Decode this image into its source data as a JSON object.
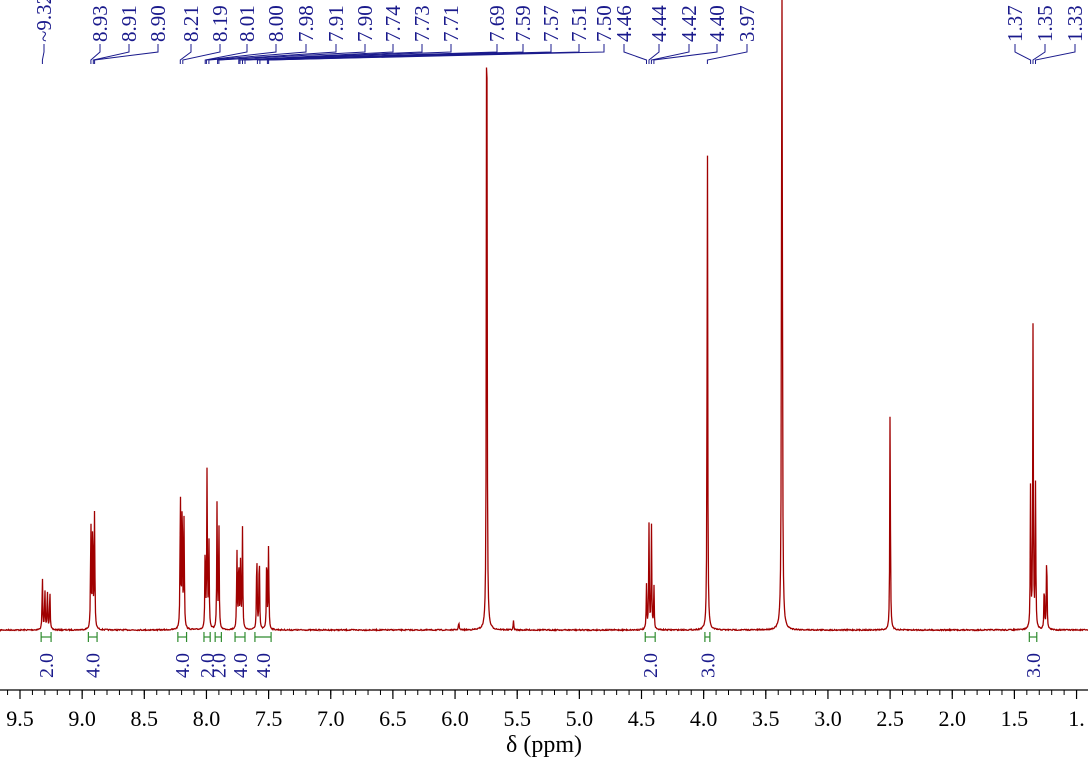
{
  "chart_data": {
    "type": "line",
    "title": "",
    "xlabel": "δ (ppm)",
    "ylabel": "",
    "x_reversed": true,
    "xlim": [
      9.6,
      1.0
    ],
    "ylim": [
      0,
      1.0
    ],
    "grid": false,
    "colors": {
      "spectrum": "#a00000",
      "peak_labels": "#1a1a8c",
      "integrals": "#2e8b2e",
      "axis": "#000000"
    },
    "x_ticks": [
      {
        "value": 9.5,
        "label": "9.5"
      },
      {
        "value": 9.0,
        "label": "9.0"
      },
      {
        "value": 8.5,
        "label": "8.5"
      },
      {
        "value": 8.0,
        "label": "8.0"
      },
      {
        "value": 7.5,
        "label": "7.5"
      },
      {
        "value": 7.0,
        "label": "7.0"
      },
      {
        "value": 6.5,
        "label": "6.5"
      },
      {
        "value": 6.0,
        "label": "6.0"
      },
      {
        "value": 5.5,
        "label": "5.5"
      },
      {
        "value": 5.0,
        "label": "5.0"
      },
      {
        "value": 4.5,
        "label": "4.5"
      },
      {
        "value": 4.0,
        "label": "4.0"
      },
      {
        "value": 3.5,
        "label": "3.5"
      },
      {
        "value": 3.0,
        "label": "3.0"
      },
      {
        "value": 2.5,
        "label": "2.5"
      },
      {
        "value": 2.0,
        "label": "2.0"
      },
      {
        "value": 1.5,
        "label": "1.5"
      },
      {
        "value": 1.0,
        "label": "1."
      }
    ],
    "peaks": [
      {
        "ppm": 9.32,
        "h": 0.09
      },
      {
        "ppm": 9.3,
        "h": 0.07
      },
      {
        "ppm": 9.28,
        "h": 0.07
      },
      {
        "ppm": 9.26,
        "h": 0.07
      },
      {
        "ppm": 8.93,
        "h": 0.19
      },
      {
        "ppm": 8.915,
        "h": 0.2
      },
      {
        "ppm": 8.9,
        "h": 0.19
      },
      {
        "ppm": 8.21,
        "h": 0.24
      },
      {
        "ppm": 8.195,
        "h": 0.24
      },
      {
        "ppm": 8.18,
        "h": 0.18
      },
      {
        "ppm": 8.01,
        "h": 0.15
      },
      {
        "ppm": 7.995,
        "h": 0.26
      },
      {
        "ppm": 7.98,
        "h": 0.14
      },
      {
        "ppm": 7.915,
        "h": 0.2
      },
      {
        "ppm": 7.9,
        "h": 0.18
      },
      {
        "ppm": 7.755,
        "h": 0.13
      },
      {
        "ppm": 7.74,
        "h": 0.13
      },
      {
        "ppm": 7.725,
        "h": 0.12
      },
      {
        "ppm": 7.71,
        "h": 0.16
      },
      {
        "ppm": 7.595,
        "h": 0.14
      },
      {
        "ppm": 7.575,
        "h": 0.14
      },
      {
        "ppm": 7.515,
        "h": 0.14
      },
      {
        "ppm": 7.5,
        "h": 0.14
      },
      {
        "ppm": 5.97,
        "h": 0.015
      },
      {
        "ppm": 5.745,
        "h": 1.35
      },
      {
        "ppm": 5.53,
        "h": 0.015
      },
      {
        "ppm": 4.46,
        "h": 0.07
      },
      {
        "ppm": 4.44,
        "h": 0.17
      },
      {
        "ppm": 4.42,
        "h": 0.17
      },
      {
        "ppm": 4.4,
        "h": 0.07
      },
      {
        "ppm": 3.97,
        "h": 0.85
      },
      {
        "ppm": 3.37,
        "h": 1.8
      },
      {
        "ppm": 2.5,
        "h": 0.37
      },
      {
        "ppm": 1.37,
        "h": 0.23
      },
      {
        "ppm": 1.35,
        "h": 0.49
      },
      {
        "ppm": 1.33,
        "h": 0.23
      },
      {
        "ppm": 1.26,
        "h": 0.08
      },
      {
        "ppm": 1.24,
        "h": 0.14
      }
    ],
    "peak_labels": [
      "9.32",
      "8.93",
      "8.91",
      "8.90",
      "8.21",
      "8.19",
      "8.01",
      "8.00",
      "7.98",
      "7.91",
      "7.90",
      "7.74",
      "7.73",
      "7.71",
      "7.69",
      "7.59",
      "7.57",
      "7.51",
      "7.50",
      "4.46",
      "4.44",
      "4.42",
      "4.40",
      "3.97",
      "1.37",
      "1.35",
      "1.33"
    ],
    "integrals": [
      {
        "from": 9.33,
        "to": 9.25,
        "label": "2.0"
      },
      {
        "from": 8.95,
        "to": 8.88,
        "label": "4.0"
      },
      {
        "from": 8.23,
        "to": 8.16,
        "label": "4.0"
      },
      {
        "from": 8.02,
        "to": 7.97,
        "label": "2.0"
      },
      {
        "from": 7.93,
        "to": 7.88,
        "label": "2.0"
      },
      {
        "from": 7.77,
        "to": 7.69,
        "label": "4.0"
      },
      {
        "from": 7.61,
        "to": 7.48,
        "label": "4.0"
      },
      {
        "from": 4.47,
        "to": 4.39,
        "label": "2.0"
      },
      {
        "from": 3.99,
        "to": 3.95,
        "label": "3.0"
      },
      {
        "from": 1.38,
        "to": 1.32,
        "label": "3.0"
      }
    ]
  }
}
